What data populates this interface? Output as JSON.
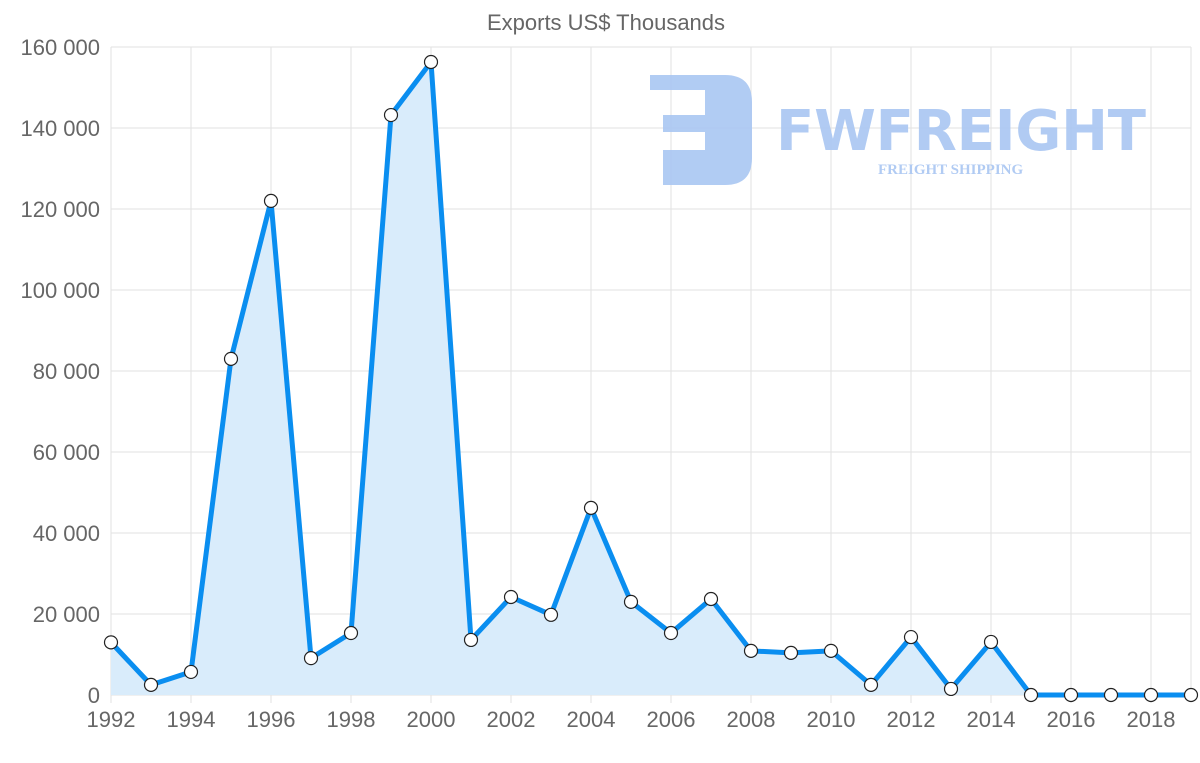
{
  "chart_data": {
    "type": "area",
    "title": "Exports US$ Thousands",
    "xlabel": "",
    "ylabel": "",
    "x": [
      1992,
      1993,
      1994,
      1995,
      1996,
      1997,
      1998,
      1999,
      2000,
      2001,
      2002,
      2003,
      2004,
      2005,
      2006,
      2007,
      2008,
      2009,
      2010,
      2011,
      2012,
      2013,
      2014,
      2015,
      2016,
      2017,
      2018,
      2019
    ],
    "series": [
      {
        "name": "Exports US$ Thousands",
        "values": [
          13000,
          2500,
          5700,
          83000,
          122000,
          9100,
          15300,
          143200,
          156300,
          13600,
          24200,
          19800,
          46200,
          23000,
          15300,
          23700,
          10900,
          10400,
          10900,
          2500,
          14300,
          1500,
          13100,
          0,
          0,
          0,
          0,
          0
        ]
      }
    ],
    "xticks": [
      "1992",
      "1994",
      "1996",
      "1998",
      "2000",
      "2002",
      "2004",
      "2006",
      "2008",
      "2010",
      "2012",
      "2014",
      "2016",
      "2018"
    ],
    "yticks": [
      "0",
      "20 000",
      "40 000",
      "60 000",
      "80 000",
      "100 000",
      "120 000",
      "140 000",
      "160 000"
    ],
    "ylim": [
      0,
      160000
    ],
    "xlim": [
      1992,
      2019
    ],
    "grid": true,
    "legend": "none",
    "colors": {
      "line": "#0a8ef0",
      "fill": "#d9ecfb",
      "grid": "#e2e2e2",
      "text": "#666666",
      "watermark": "#a9c6f2"
    }
  },
  "watermark": {
    "brand": "FWFREIGHT",
    "tagline": "FREIGHT SHIPPING"
  }
}
